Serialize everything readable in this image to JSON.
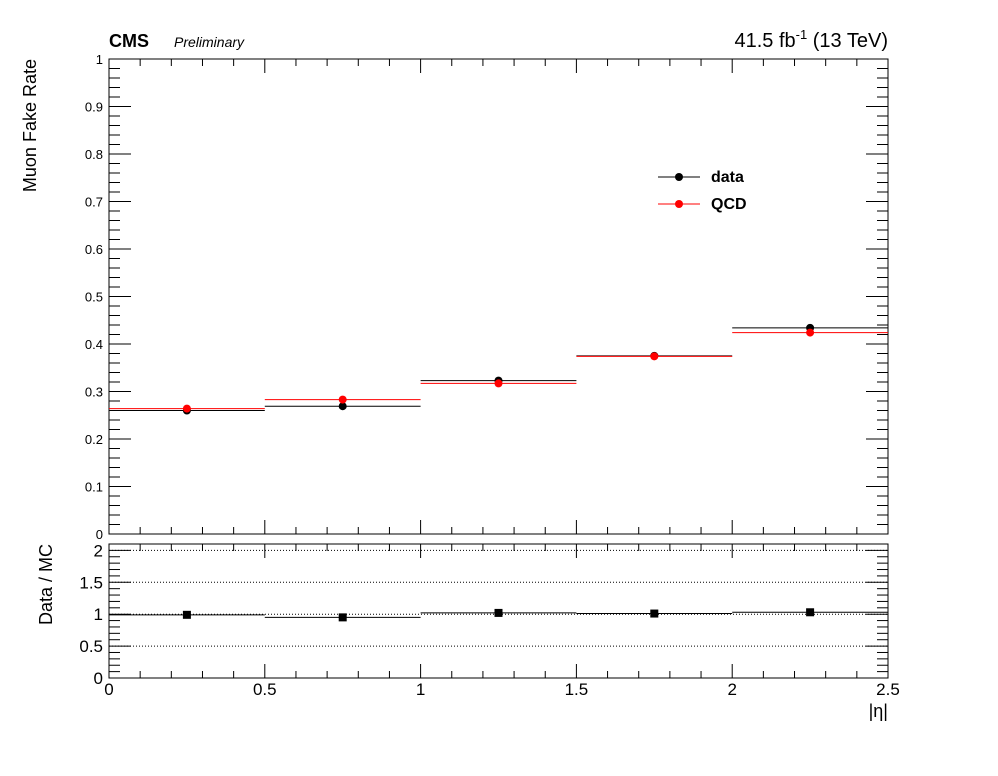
{
  "header": {
    "experiment": "CMS",
    "status": "Preliminary",
    "lumi_value": "41.5 fb",
    "lumi_exp": "-1",
    "lumi_energy": " (13 TeV)"
  },
  "chart_data": [
    {
      "type": "scatter",
      "panel": "main",
      "ylabel": "Muon Fake Rate",
      "xlim": [
        0,
        2.5
      ],
      "ylim": [
        0,
        1
      ],
      "yticks": [
        "0",
        "0.1",
        "0.2",
        "0.3",
        "0.4",
        "0.5",
        "0.6",
        "0.7",
        "0.8",
        "0.9",
        "1"
      ],
      "legend": {
        "placement": "top-right"
      },
      "series": [
        {
          "name": "data",
          "color": "#000000",
          "x": [
            0.25,
            0.75,
            1.25,
            1.75,
            2.25
          ],
          "xerr": [
            0.25,
            0.25,
            0.25,
            0.25,
            0.25
          ],
          "y": [
            0.26,
            0.269,
            0.323,
            0.375,
            0.434
          ]
        },
        {
          "name": "QCD",
          "color": "#ff0000",
          "x": [
            0.25,
            0.75,
            1.25,
            1.75,
            2.25
          ],
          "xerr": [
            0.25,
            0.25,
            0.25,
            0.25,
            0.25
          ],
          "y": [
            0.264,
            0.283,
            0.317,
            0.374,
            0.424
          ]
        }
      ]
    },
    {
      "type": "scatter",
      "panel": "ratio",
      "ylabel": "Data / MC",
      "xlabel": "|η|",
      "xlim": [
        0,
        2.5
      ],
      "ylim": [
        0,
        2.1
      ],
      "xticks": [
        "0",
        "0.5",
        "1",
        "1.5",
        "2",
        "2.5"
      ],
      "yticks": [
        "0",
        "0.5",
        "1",
        "1.5",
        "2"
      ],
      "gridlines_y": [
        0.5,
        1,
        1.5,
        2
      ],
      "series": [
        {
          "color": "#000000",
          "x": [
            0.25,
            0.75,
            1.25,
            1.75,
            2.25
          ],
          "xerr": [
            0.25,
            0.25,
            0.25,
            0.25,
            0.25
          ],
          "y": [
            0.99,
            0.95,
            1.02,
            1.01,
            1.03
          ]
        }
      ]
    }
  ]
}
